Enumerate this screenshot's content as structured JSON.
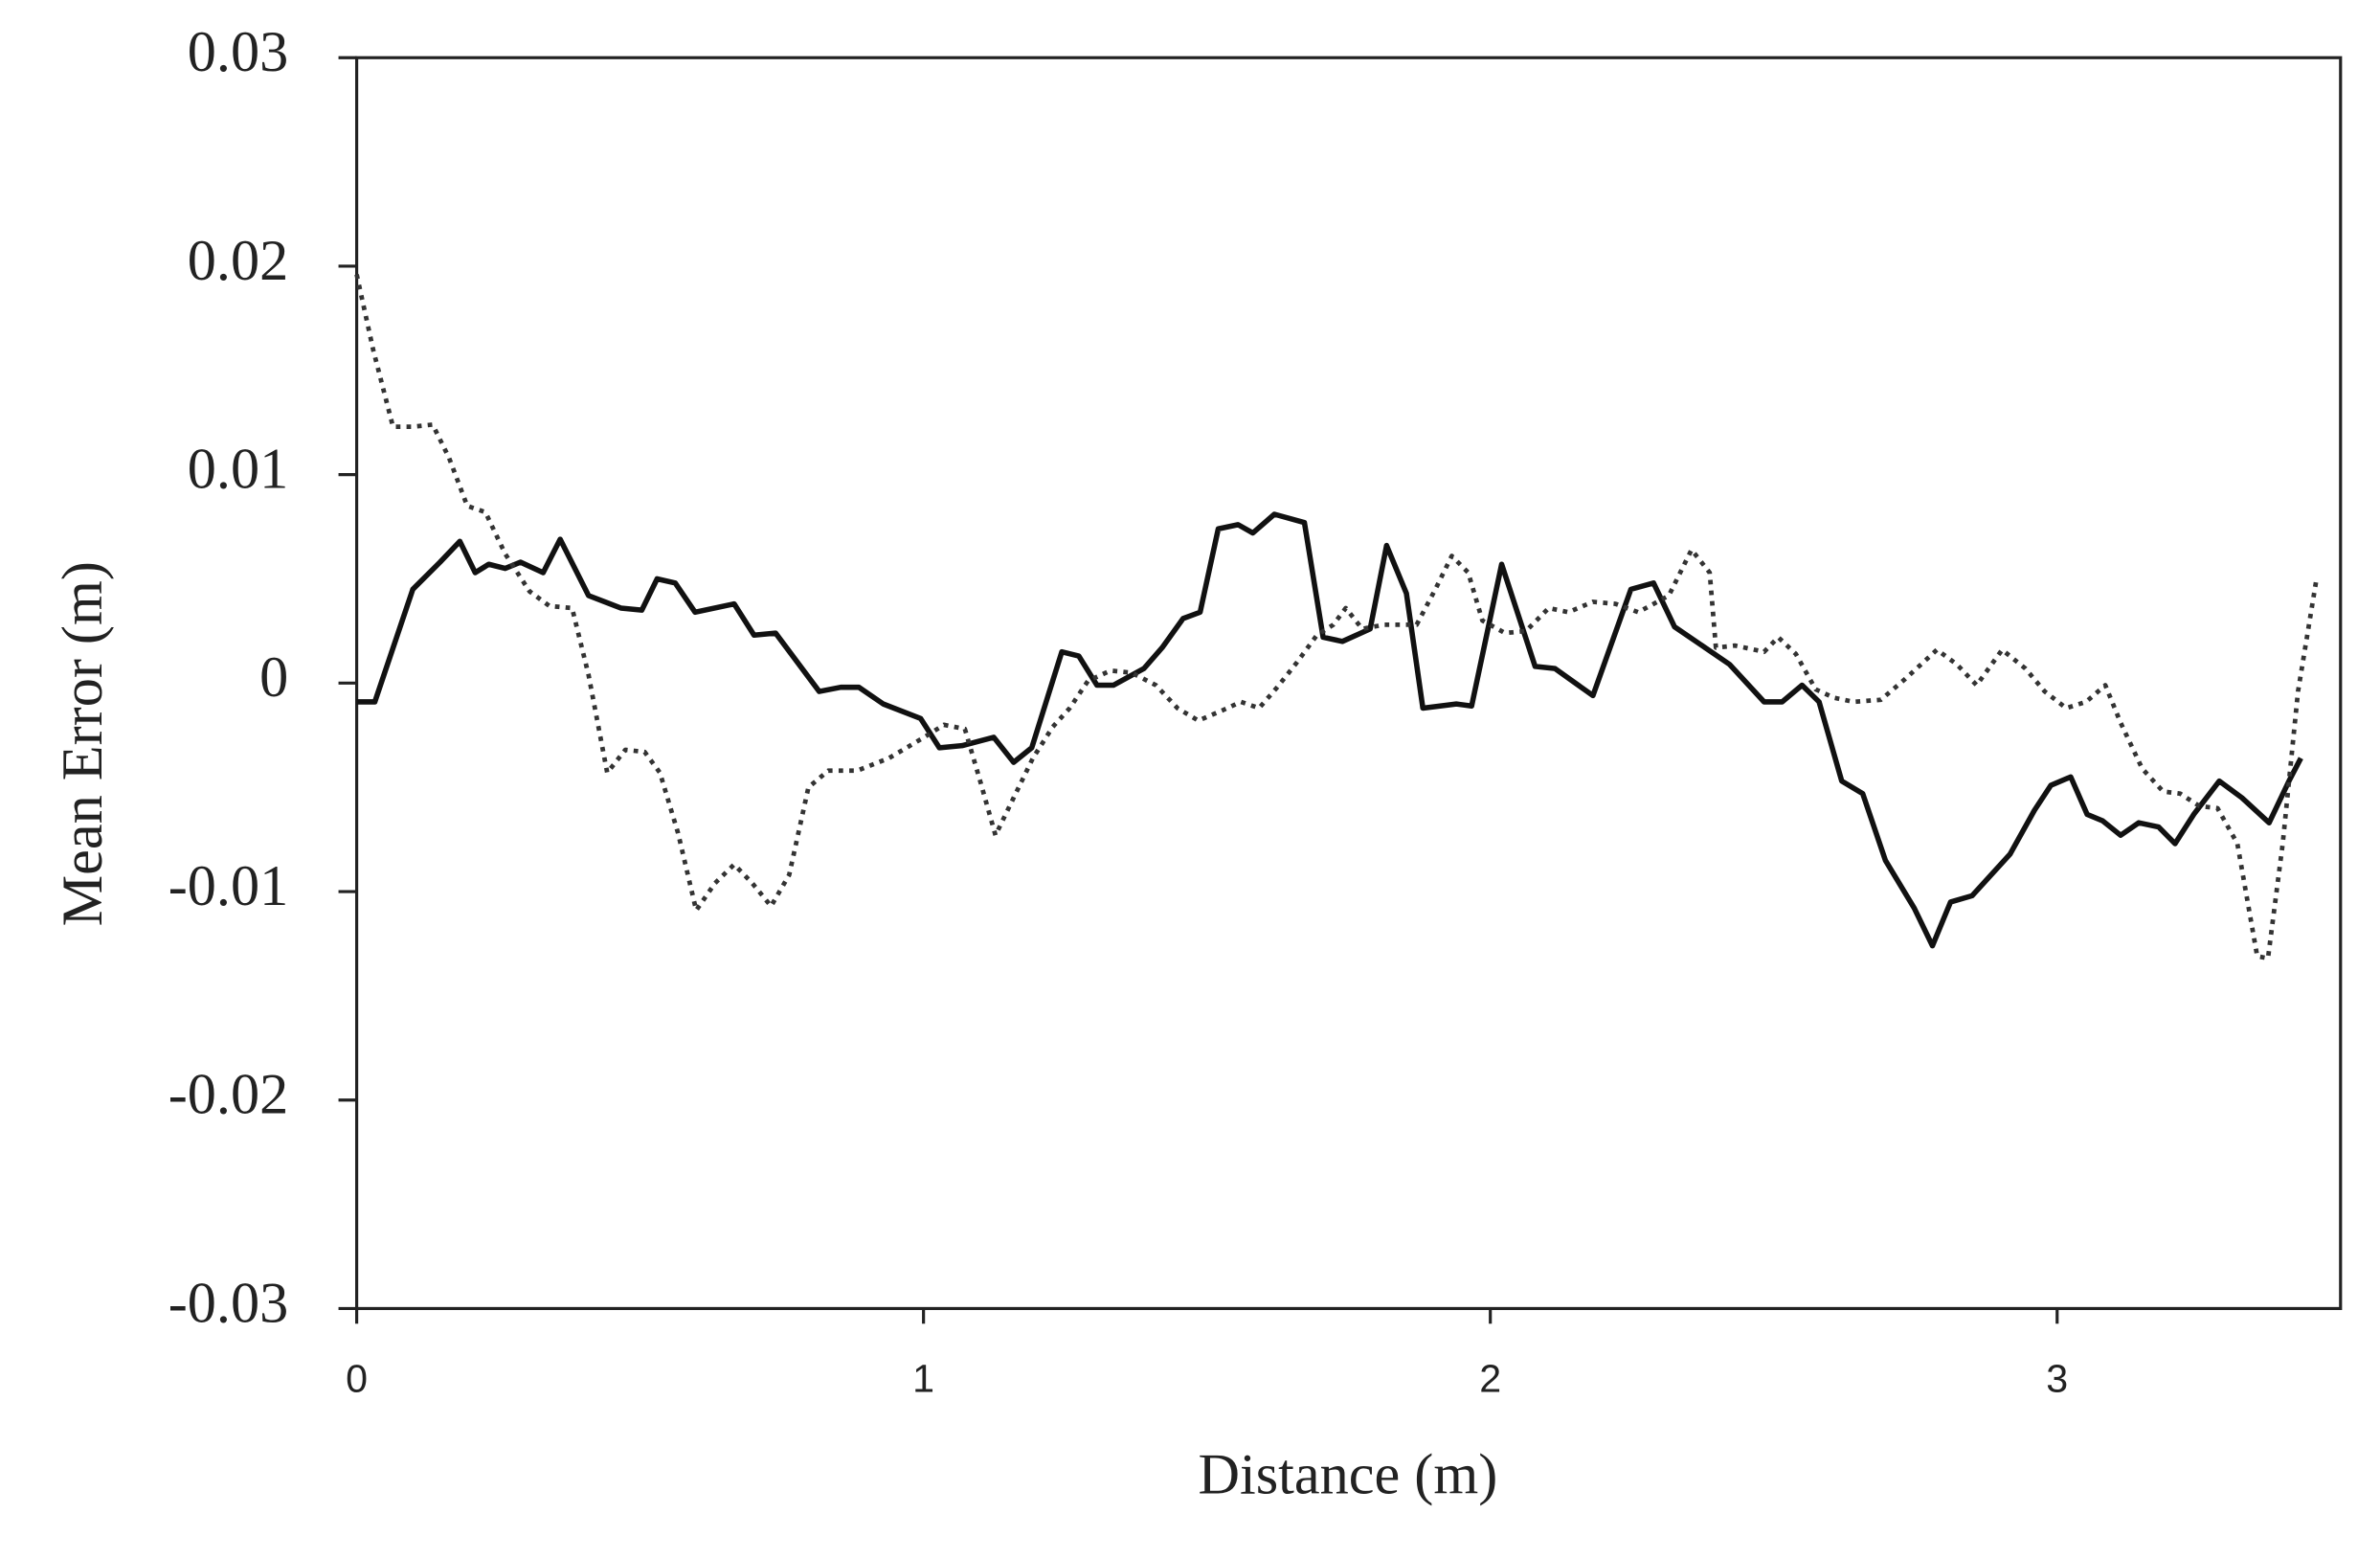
{
  "chart_data": {
    "type": "line",
    "xlabel": "Distance (m)",
    "ylabel": "Mean Error (m)",
    "xlim": [
      0,
      3.5
    ],
    "ylim": [
      -0.03,
      0.03
    ],
    "xticks": [
      0,
      1,
      2,
      3
    ],
    "yticks": [
      -0.03,
      -0.02,
      -0.01,
      0,
      0.01,
      0.02,
      0.03
    ],
    "series": [
      {
        "color": "#111111",
        "dash": "solid",
        "x": [
          0,
          0.032,
          0.099,
          0.147,
          0.182,
          0.209,
          0.233,
          0.262,
          0.289,
          0.329,
          0.359,
          0.409,
          0.466,
          0.503,
          0.53,
          0.562,
          0.597,
          0.666,
          0.701,
          0.739,
          0.816,
          0.854,
          0.886,
          0.929,
          0.995,
          1.028,
          1.068,
          1.124,
          1.159,
          1.191,
          1.244,
          1.274,
          1.306,
          1.335,
          1.389,
          1.421,
          1.458,
          1.488,
          1.52,
          1.555,
          1.581,
          1.619,
          1.672,
          1.705,
          1.739,
          1.788,
          1.817,
          1.852,
          1.881,
          1.94,
          1.967,
          2.02,
          2.079,
          2.114,
          2.181,
          2.248,
          2.288,
          2.325,
          2.422,
          2.483,
          2.515,
          2.55,
          2.58,
          2.62,
          2.657,
          2.697,
          2.748,
          2.78,
          2.812,
          2.85,
          2.917,
          2.96,
          2.989,
          3.024,
          3.053,
          3.08,
          3.112,
          3.144,
          3.179,
          3.208,
          3.241,
          3.286,
          3.326,
          3.374,
          3.409,
          3.43
        ],
        "values": [
          -0.0009,
          -0.0009,
          0.0045,
          0.0058,
          0.0068,
          0.0053,
          0.0057,
          0.0055,
          0.0058,
          0.0053,
          0.0069,
          0.0042,
          0.0036,
          0.0035,
          0.005,
          0.0048,
          0.0034,
          0.0038,
          0.0023,
          0.0024,
          -0.0004,
          -0.0002,
          -0.0002,
          -0.001,
          -0.0017,
          -0.0031,
          -0.003,
          -0.0026,
          -0.0038,
          -0.0031,
          0.0015,
          0.0013,
          -0.0001,
          -0.0001,
          0.0007,
          0.0017,
          0.0031,
          0.0034,
          0.0074,
          0.0076,
          0.0072,
          0.0081,
          0.0077,
          0.0022,
          0.002,
          0.0026,
          0.0066,
          0.0043,
          -0.0012,
          -0.001,
          -0.0011,
          0.0057,
          0.0008,
          0.0007,
          -0.0006,
          0.0045,
          0.0048,
          0.0027,
          0.0009,
          -0.0009,
          -0.0009,
          -0.0001,
          -0.0009,
          -0.0047,
          -0.0053,
          -0.0085,
          -0.0108,
          -0.0126,
          -0.0105,
          -0.0102,
          -0.0082,
          -0.0061,
          -0.0049,
          -0.0045,
          -0.0063,
          -0.0066,
          -0.0073,
          -0.0067,
          -0.0069,
          -0.0077,
          -0.0063,
          -0.0047,
          -0.0055,
          -0.0067,
          -0.0047,
          -0.0036
        ]
      },
      {
        "color": "#333333",
        "dash": "dotted",
        "x": [
          0,
          0.029,
          0.064,
          0.099,
          0.134,
          0.163,
          0.195,
          0.227,
          0.262,
          0.305,
          0.34,
          0.38,
          0.409,
          0.442,
          0.474,
          0.508,
          0.535,
          0.567,
          0.599,
          0.632,
          0.666,
          0.698,
          0.731,
          0.763,
          0.797,
          0.832,
          0.883,
          0.939,
          1.001,
          1.036,
          1.073,
          1.1,
          1.127,
          1.159,
          1.193,
          1.228,
          1.258,
          1.29,
          1.33,
          1.367,
          1.41,
          1.448,
          1.485,
          1.528,
          1.56,
          1.592,
          1.624,
          1.659,
          1.694,
          1.723,
          1.745,
          1.774,
          1.812,
          1.87,
          1.903,
          1.932,
          1.961,
          1.986,
          2.026,
          2.063,
          2.103,
          2.138,
          2.181,
          2.221,
          2.261,
          2.315,
          2.355,
          2.387,
          2.398,
          2.432,
          2.483,
          2.508,
          2.539,
          2.574,
          2.606,
          2.641,
          2.689,
          2.732,
          2.788,
          2.823,
          2.858,
          2.903,
          2.944,
          2.978,
          3.016,
          3.051,
          3.085,
          3.112,
          3.15,
          3.187,
          3.217,
          3.251,
          3.283,
          3.318,
          3.353,
          3.372,
          3.398,
          3.425,
          3.457
        ],
        "values": [
          0.0196,
          0.016,
          0.0123,
          0.0123,
          0.0124,
          0.0108,
          0.0085,
          0.0082,
          0.0062,
          0.0044,
          0.0037,
          0.0036,
          0.0004,
          -0.0043,
          -0.0032,
          -0.0033,
          -0.0043,
          -0.0072,
          -0.0109,
          -0.0096,
          -0.0087,
          -0.0096,
          -0.0107,
          -0.0092,
          -0.005,
          -0.0042,
          -0.0042,
          -0.0036,
          -0.0026,
          -0.002,
          -0.0022,
          -0.0047,
          -0.0073,
          -0.0055,
          -0.0036,
          -0.0021,
          -0.0012,
          0.0001,
          0.0006,
          0.0005,
          -0.0001,
          -0.0012,
          -0.0018,
          -0.0013,
          -0.0009,
          -0.0012,
          -0.0002,
          0.001,
          0.0023,
          0.0028,
          0.0036,
          0.0026,
          0.0028,
          0.0028,
          0.0045,
          0.0061,
          0.0053,
          0.003,
          0.0024,
          0.0025,
          0.0036,
          0.0034,
          0.0039,
          0.0038,
          0.0034,
          0.0042,
          0.0064,
          0.0053,
          0.0017,
          0.0018,
          0.0015,
          0.0022,
          0.0014,
          -0.0003,
          -0.0007,
          -0.0009,
          -0.0008,
          0.0002,
          0.0016,
          0.0009,
          -0.0001,
          0.0016,
          0.0007,
          -0.0004,
          -0.0012,
          -0.0009,
          -0.0001,
          -0.0019,
          -0.0041,
          -0.0052,
          -0.0053,
          -0.0059,
          -0.006,
          -0.0077,
          -0.0131,
          -0.0132,
          -0.0077,
          -0.0004,
          0.0049
        ]
      }
    ]
  }
}
